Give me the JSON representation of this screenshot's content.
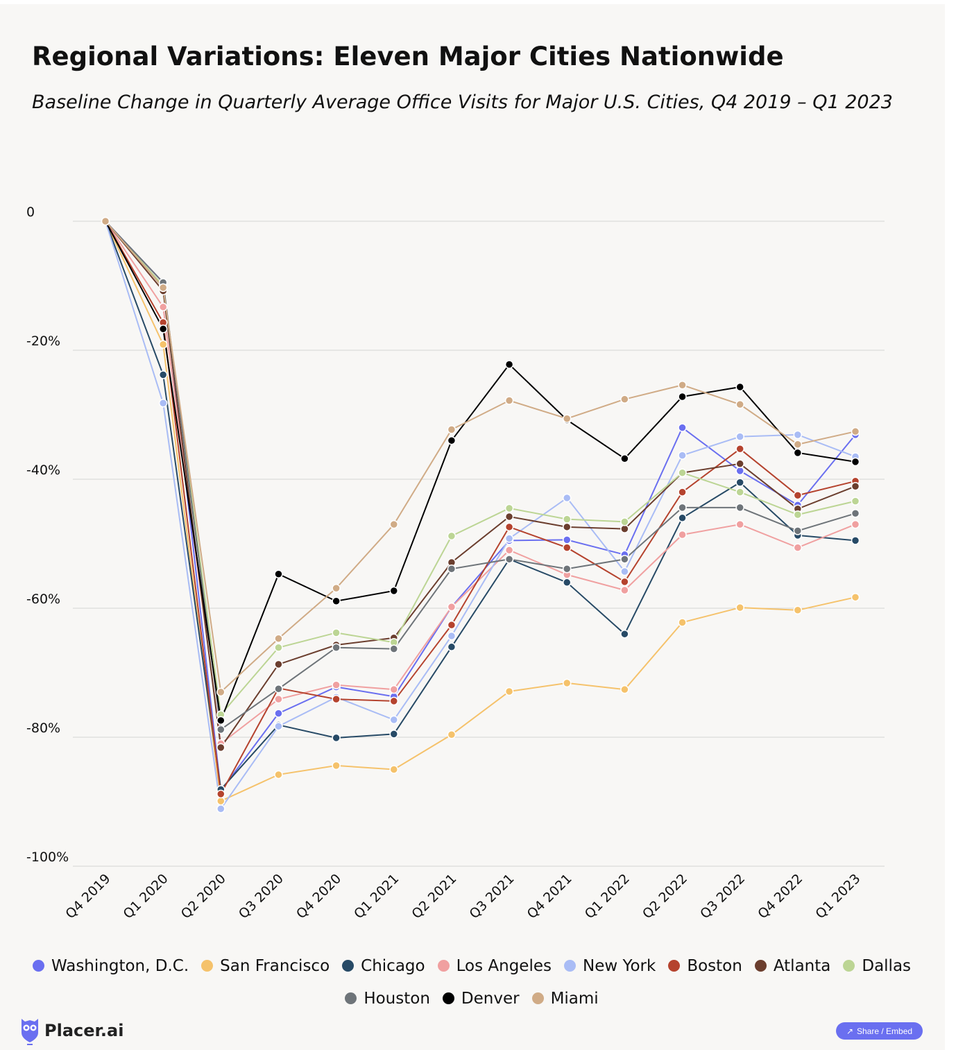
{
  "chart_data": {
    "type": "line",
    "title": "Regional Variations: Eleven Major Cities Nationwide",
    "subtitle": "Baseline Change in Quarterly Average Office Visits for Major U.S. Cities, Q4 2019 – Q1 2023",
    "xlabel": "",
    "ylabel": "",
    "ylim": [
      -100,
      0
    ],
    "yticks": [
      0,
      -20,
      -40,
      -60,
      -80,
      -100
    ],
    "ytick_labels": [
      "0",
      "-20%",
      "-40%",
      "-60%",
      "-80%",
      "-100%"
    ],
    "grid": true,
    "legend_position": "bottom",
    "categories": [
      "Q4 2019",
      "Q1 2020",
      "Q2 2020",
      "Q3 2020",
      "Q4 2020",
      "Q1 2021",
      "Q2 2021",
      "Q3 2021",
      "Q4 2021",
      "Q1 2022",
      "Q2 2022",
      "Q3 2022",
      "Q4 2022",
      "Q1 2023"
    ],
    "series": [
      {
        "name": "Washington, D.C.",
        "color": "#6a6ff0",
        "values": [
          0,
          -9.5,
          -88.3,
          -76.3,
          -72.2,
          -73.7,
          -59.8,
          -49.5,
          -49.4,
          -51.7,
          -32,
          -38.7,
          -44,
          -33.1
        ]
      },
      {
        "name": "San Francisco",
        "color": "#f5c26b",
        "values": [
          0,
          -19.1,
          -89.9,
          -85.8,
          -84.4,
          -85,
          -79.6,
          -72.9,
          -71.6,
          -72.6,
          -62.2,
          -59.9,
          -60.3,
          -58.3
        ]
      },
      {
        "name": "Chicago",
        "color": "#274a66",
        "values": [
          0,
          -23.8,
          -88.1,
          -78.1,
          -80.1,
          -79.5,
          -66,
          -52.4,
          -56,
          -64,
          -46,
          -40.5,
          -48.7,
          -49.5
        ]
      },
      {
        "name": "Los Angeles",
        "color": "#f0a0a0",
        "values": [
          0,
          -13.3,
          -81,
          -74.1,
          -71.9,
          -72.6,
          -59.8,
          -51,
          -54.8,
          -57.2,
          -48.6,
          -47,
          -50.6,
          -47
        ]
      },
      {
        "name": "New York",
        "color": "#a9bcf5",
        "values": [
          0,
          -28.2,
          -91.1,
          -78.3,
          -73.8,
          -77.3,
          -64.3,
          -49.2,
          -42.9,
          -54.3,
          -36.3,
          -33.4,
          -33.1,
          -36.5
        ]
      },
      {
        "name": "Boston",
        "color": "#b5432e",
        "values": [
          0,
          -15.7,
          -88.8,
          -72.4,
          -74.1,
          -74.4,
          -62.6,
          -47.4,
          -50.6,
          -55.9,
          -42,
          -35.3,
          -42.5,
          -40.3
        ]
      },
      {
        "name": "Atlanta",
        "color": "#6b3e2e",
        "values": [
          0,
          -10.8,
          -81.6,
          -68.7,
          -65.7,
          -64.6,
          -52.9,
          -45.8,
          -47.4,
          -47.7,
          -39,
          -37.6,
          -44.6,
          -41.1
        ]
      },
      {
        "name": "Dallas",
        "color": "#bcd594",
        "values": [
          0,
          -10,
          -76.5,
          -66.1,
          -63.8,
          -65.3,
          -48.8,
          -44.5,
          -46.2,
          -46.6,
          -39,
          -42,
          -45.5,
          -43.4
        ]
      },
      {
        "name": "Houston",
        "color": "#6e7479",
        "values": [
          0,
          -9.5,
          -78.8,
          -72.5,
          -66.1,
          -66.3,
          -53.9,
          -52.4,
          -53.9,
          -52.4,
          -44.4,
          -44.4,
          -48,
          -45.3
        ]
      },
      {
        "name": "Denver",
        "color": "#000000",
        "values": [
          0,
          -16.7,
          -77.4,
          -54.7,
          -58.9,
          -57.3,
          -34,
          -22.2,
          -30.8,
          -36.8,
          -27.2,
          -25.7,
          -35.9,
          -37.3
        ]
      },
      {
        "name": "Miami",
        "color": "#d0ab86",
        "values": [
          0,
          -10.3,
          -73,
          -64.7,
          -56.9,
          -47,
          -32.3,
          -27.8,
          -30.6,
          -27.6,
          -25.4,
          -28.4,
          -34.6,
          -32.6
        ]
      }
    ]
  },
  "footer": {
    "brand": "Placer.ai",
    "share_label": "Share / Embed",
    "accent": "#6a6ff0"
  }
}
